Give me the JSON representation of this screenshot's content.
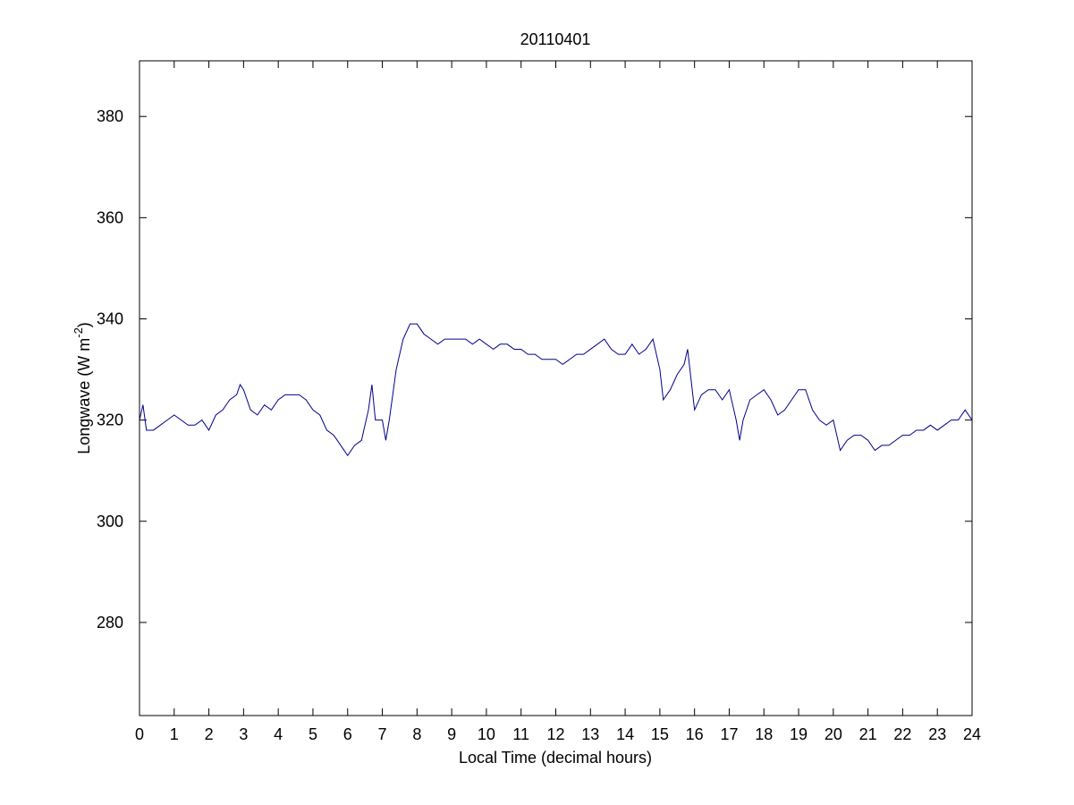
{
  "chart_data": {
    "type": "line",
    "title": "20110401",
    "x_label": "Local Time (decimal hours)",
    "y_label": "Longwave (W m",
    "y_label_sup": "-2",
    "y_label_end": ")",
    "x": [
      0,
      0.1,
      0.2,
      0.4,
      0.6,
      0.8,
      1.0,
      1.2,
      1.4,
      1.6,
      1.8,
      2.0,
      2.2,
      2.4,
      2.6,
      2.8,
      2.9,
      3.0,
      3.2,
      3.4,
      3.6,
      3.8,
      4.0,
      4.2,
      4.4,
      4.6,
      4.8,
      5.0,
      5.2,
      5.4,
      5.6,
      5.8,
      6.0,
      6.2,
      6.4,
      6.6,
      6.7,
      6.8,
      7.0,
      7.1,
      7.2,
      7.4,
      7.6,
      7.8,
      8.0,
      8.2,
      8.4,
      8.6,
      8.8,
      9.0,
      9.2,
      9.4,
      9.6,
      9.8,
      10.0,
      10.2,
      10.4,
      10.6,
      10.8,
      11.0,
      11.2,
      11.4,
      11.6,
      11.8,
      12.0,
      12.2,
      12.4,
      12.6,
      12.8,
      13.0,
      13.2,
      13.4,
      13.6,
      13.8,
      14.0,
      14.2,
      14.4,
      14.6,
      14.8,
      15.0,
      15.1,
      15.3,
      15.5,
      15.7,
      15.8,
      16.0,
      16.2,
      16.4,
      16.6,
      16.8,
      17.0,
      17.2,
      17.3,
      17.4,
      17.6,
      17.8,
      18.0,
      18.2,
      18.4,
      18.6,
      18.8,
      19.0,
      19.2,
      19.4,
      19.6,
      19.8,
      20.0,
      20.2,
      20.4,
      20.6,
      20.8,
      21.0,
      21.2,
      21.4,
      21.6,
      21.8,
      22.0,
      22.2,
      22.4,
      22.6,
      22.8,
      23.0,
      23.2,
      23.4,
      23.6,
      23.8,
      24.0
    ],
    "series": [
      {
        "name": "Longwave",
        "color": "#00008b",
        "values": [
          320,
          323,
          318,
          318,
          319,
          320,
          321,
          320,
          319,
          319,
          320,
          318,
          321,
          322,
          324,
          325,
          327,
          326,
          322,
          321,
          323,
          322,
          324,
          325,
          325,
          325,
          324,
          322,
          321,
          318,
          317,
          315,
          313,
          315,
          316,
          322,
          327,
          320,
          320,
          316,
          320,
          330,
          336,
          339,
          339,
          337,
          336,
          335,
          336,
          336,
          336,
          336,
          335,
          336,
          335,
          334,
          335,
          335,
          334,
          334,
          333,
          333,
          332,
          332,
          332,
          331,
          332,
          333,
          333,
          334,
          335,
          336,
          334,
          333,
          333,
          335,
          333,
          334,
          336,
          330,
          324,
          326,
          329,
          331,
          334,
          322,
          325,
          326,
          326,
          324,
          326,
          320,
          316,
          320,
          324,
          325,
          326,
          324,
          321,
          322,
          324,
          326,
          326,
          322,
          320,
          319,
          320,
          314,
          316,
          317,
          317,
          316,
          314,
          315,
          315,
          316,
          317,
          317,
          318,
          318,
          319,
          318,
          319,
          320,
          320,
          322,
          320
        ]
      }
    ],
    "xlim": [
      0,
      24
    ],
    "ylim": [
      261.6,
      391
    ],
    "xticks": [
      0,
      1,
      2,
      3,
      4,
      5,
      6,
      7,
      8,
      9,
      10,
      11,
      12,
      13,
      14,
      15,
      16,
      17,
      18,
      19,
      20,
      21,
      22,
      23,
      24
    ],
    "yticks": [
      280,
      300,
      320,
      340,
      360,
      380
    ]
  }
}
